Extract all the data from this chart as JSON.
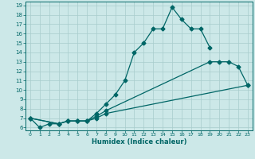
{
  "xlabel": "Humidex (Indice chaleur)",
  "bg_color": "#cce8e8",
  "grid_color": "#a8cccc",
  "line_color": "#006666",
  "xlim_min": -0.5,
  "xlim_max": 23.5,
  "ylim_min": 5.7,
  "ylim_max": 19.4,
  "xticks": [
    0,
    1,
    2,
    3,
    4,
    5,
    6,
    7,
    8,
    9,
    10,
    11,
    12,
    13,
    14,
    15,
    16,
    17,
    18,
    19,
    20,
    21,
    22,
    23
  ],
  "yticks": [
    6,
    7,
    8,
    9,
    10,
    11,
    12,
    13,
    14,
    15,
    16,
    17,
    18,
    19
  ],
  "line1_x": [
    0,
    1,
    2,
    3,
    4,
    5,
    6,
    7,
    8,
    9,
    10,
    11,
    12,
    13,
    14,
    15,
    16,
    17,
    18,
    19
  ],
  "line1_y": [
    7.0,
    6.0,
    6.4,
    6.4,
    6.7,
    6.7,
    6.7,
    7.5,
    8.5,
    9.5,
    11.0,
    14.0,
    15.0,
    16.5,
    16.5,
    18.8,
    17.5,
    16.5,
    16.5,
    14.5
  ],
  "line2_x": [
    0,
    3,
    4,
    5,
    6,
    7,
    8,
    19,
    20,
    21,
    22,
    23
  ],
  "line2_y": [
    7.0,
    6.4,
    6.7,
    6.7,
    6.7,
    7.2,
    7.8,
    13.0,
    13.0,
    13.0,
    12.5,
    10.5
  ],
  "line3_x": [
    0,
    3,
    4,
    5,
    6,
    7,
    8,
    23
  ],
  "line3_y": [
    7.0,
    6.4,
    6.7,
    6.7,
    6.7,
    7.0,
    7.5,
    10.5
  ]
}
